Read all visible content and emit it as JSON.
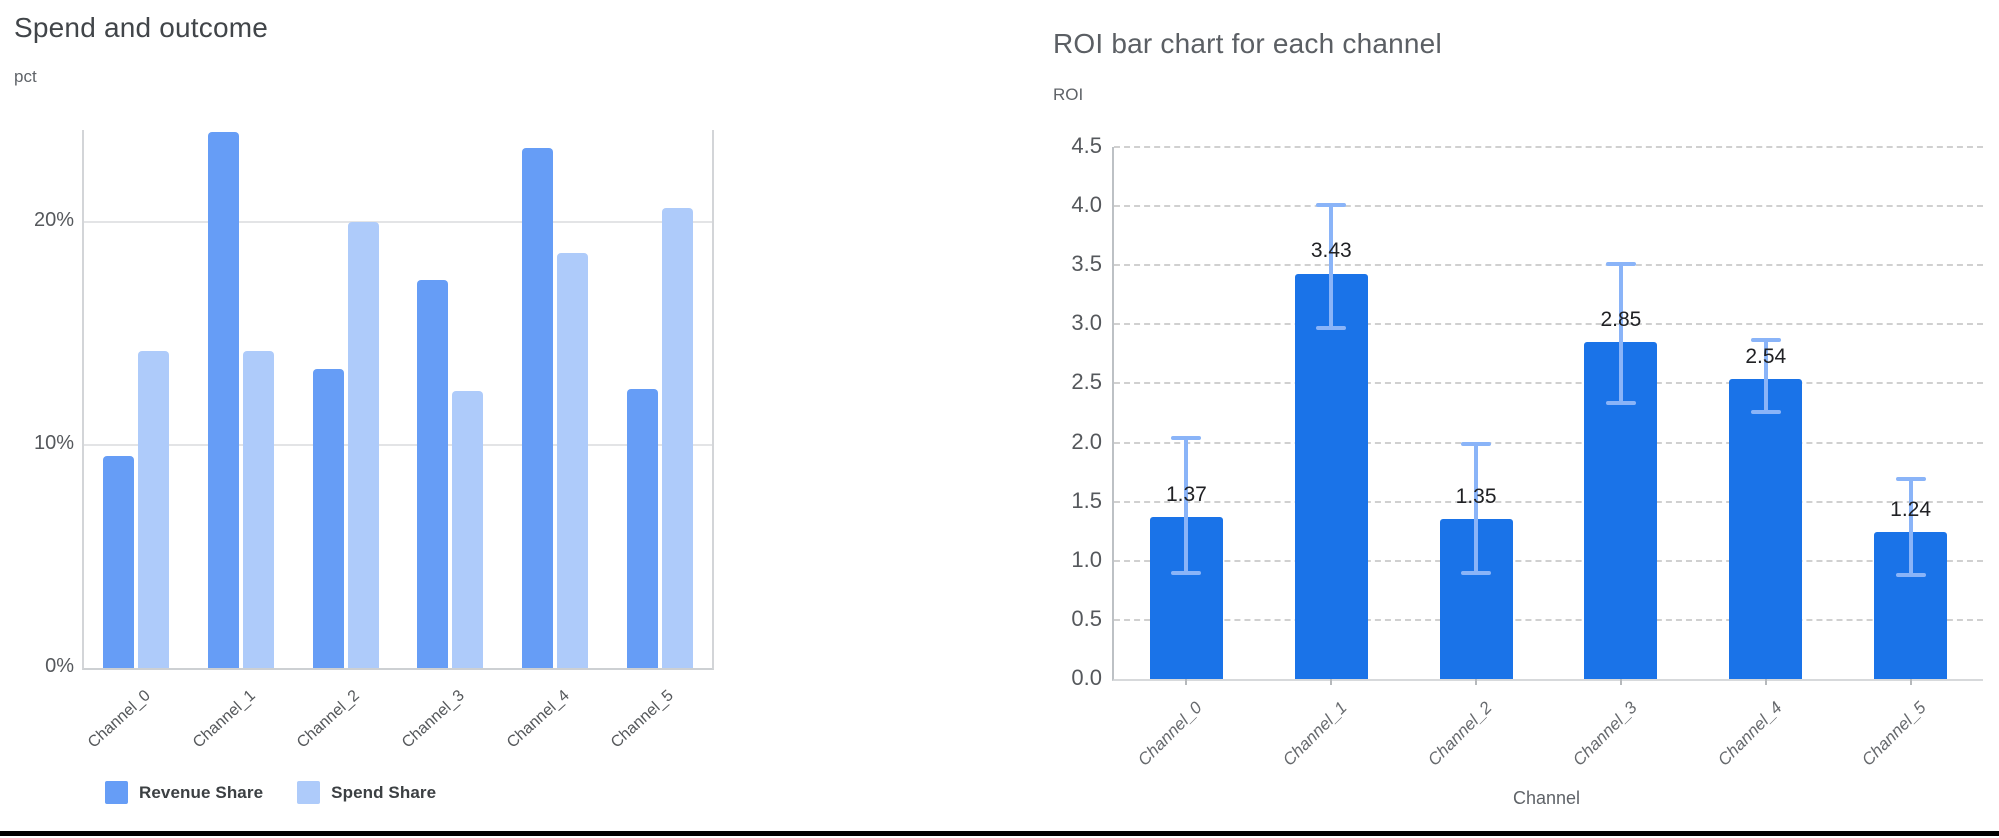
{
  "page": {
    "background": "#ffffff",
    "bottom_rule_color": "#000000"
  },
  "chart_data": [
    {
      "id": "spend-outcome",
      "type": "bar",
      "title": "Spend and outcome",
      "ylabel": "pct",
      "xlabel": "",
      "categories": [
        "Channel_0",
        "Channel_1",
        "Channel_2",
        "Channel_3",
        "Channel_4",
        "Channel_5"
      ],
      "series": [
        {
          "name": "Revenue Share",
          "color": "#669DF6",
          "values": [
            9.5,
            24.0,
            13.4,
            17.4,
            23.3,
            12.5
          ]
        },
        {
          "name": "Spend Share",
          "color": "#AECBFA",
          "values": [
            14.2,
            14.2,
            20.0,
            12.4,
            18.6,
            20.6
          ]
        }
      ],
      "unit": "%",
      "y_ticks": [
        {
          "value": 0,
          "label": "0%"
        },
        {
          "value": 10,
          "label": "10%"
        },
        {
          "value": 20,
          "label": "20%"
        }
      ],
      "ylim": [
        0,
        24.1
      ],
      "grid": "horizontal-solid",
      "legend_position": "bottom-left"
    },
    {
      "id": "roi",
      "type": "bar",
      "title": "ROI bar chart for each channel",
      "ylabel": "ROI",
      "xlabel": "Channel",
      "categories": [
        "Channel_0",
        "Channel_1",
        "Channel_2",
        "Channel_3",
        "Channel_4",
        "Channel_5"
      ],
      "values": [
        1.37,
        3.43,
        1.35,
        2.85,
        2.54,
        1.24
      ],
      "bar_labels": [
        "1.37",
        "3.43",
        "1.35",
        "2.85",
        "2.54",
        "1.24"
      ],
      "error_bars": [
        {
          "low": 0.89,
          "high": 2.05
        },
        {
          "low": 2.96,
          "high": 4.02
        },
        {
          "low": 0.89,
          "high": 2.0
        },
        {
          "low": 2.33,
          "high": 3.52
        },
        {
          "low": 2.25,
          "high": 2.88
        },
        {
          "low": 0.87,
          "high": 1.7
        }
      ],
      "bar_color": "#1A73E8",
      "error_bar_color": "#8AB4F8",
      "y_ticks": [
        {
          "value": 0,
          "label": "0.0"
        },
        {
          "value": 0.5,
          "label": "0.5"
        },
        {
          "value": 1,
          "label": "1.0"
        },
        {
          "value": 1.5,
          "label": "1.5"
        },
        {
          "value": 2,
          "label": "2.0"
        },
        {
          "value": 2.5,
          "label": "2.5"
        },
        {
          "value": 3,
          "label": "3.0"
        },
        {
          "value": 3.5,
          "label": "3.5"
        },
        {
          "value": 4,
          "label": "4.0"
        },
        {
          "value": 4.5,
          "label": "4.5"
        }
      ],
      "ylim": [
        0,
        4.5
      ],
      "grid": "horizontal-dashed",
      "legend_position": "none"
    }
  ]
}
